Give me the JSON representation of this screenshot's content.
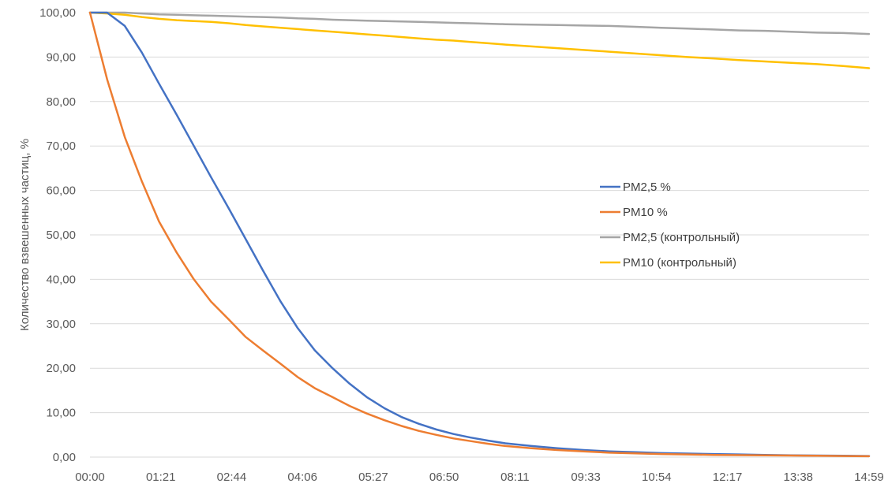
{
  "chart_data": {
    "type": "line",
    "title": "",
    "xlabel": "",
    "ylabel": "Количество взвешенных частиц, %",
    "ylim": [
      0,
      100
    ],
    "y_ticks": [
      "0,00",
      "10,00",
      "20,00",
      "30,00",
      "40,00",
      "50,00",
      "60,00",
      "70,00",
      "80,00",
      "90,00",
      "100,00"
    ],
    "x_ticks": [
      "00:00",
      "01:21",
      "02:44",
      "04:06",
      "05:27",
      "06:50",
      "08:11",
      "09:33",
      "10:54",
      "12:17",
      "13:38",
      "14:59"
    ],
    "x_minutes": [
      0,
      0.33,
      0.67,
      1,
      1.33,
      1.67,
      2,
      2.33,
      2.67,
      3,
      3.33,
      3.67,
      4,
      4.33,
      4.67,
      5,
      5.33,
      5.67,
      6,
      6.33,
      6.67,
      7,
      7.33,
      7.67,
      8,
      8.5,
      9,
      9.5,
      10,
      10.5,
      11,
      11.5,
      12,
      12.5,
      13,
      13.5,
      14,
      14.5,
      15
    ],
    "grid": true,
    "legend_position": "center-right",
    "series": [
      {
        "name": "PM2,5 %",
        "color": "#4472C4",
        "values": [
          100,
          100,
          97,
          91,
          84,
          77,
          70,
          63,
          56,
          49,
          42,
          35,
          29,
          24,
          20,
          16.5,
          13.5,
          11,
          9,
          7.5,
          6.2,
          5.2,
          4.4,
          3.7,
          3.1,
          2.5,
          2.0,
          1.6,
          1.3,
          1.1,
          0.9,
          0.8,
          0.7,
          0.6,
          0.5,
          0.4,
          0.35,
          0.3,
          0.25
        ]
      },
      {
        "name": "PM10 %",
        "color": "#ED7D31",
        "values": [
          100,
          85,
          72,
          62,
          53,
          46,
          40,
          35,
          31,
          27,
          24,
          21,
          18,
          15.5,
          13.5,
          11.5,
          9.8,
          8.3,
          7,
          5.9,
          5.0,
          4.2,
          3.6,
          3.0,
          2.5,
          2.0,
          1.6,
          1.3,
          1.0,
          0.85,
          0.7,
          0.6,
          0.5,
          0.45,
          0.4,
          0.35,
          0.3,
          0.25,
          0.2
        ]
      },
      {
        "name": "PM2,5 (контрольный)",
        "color": "#A5A5A5",
        "values": [
          100,
          100,
          100,
          99.8,
          99.6,
          99.5,
          99.4,
          99.3,
          99.2,
          99.1,
          99.0,
          98.9,
          98.7,
          98.6,
          98.4,
          98.3,
          98.2,
          98.1,
          98.0,
          97.9,
          97.8,
          97.7,
          97.6,
          97.5,
          97.4,
          97.3,
          97.2,
          97.1,
          97.0,
          96.8,
          96.6,
          96.4,
          96.2,
          96.0,
          95.9,
          95.7,
          95.5,
          95.4,
          95.2
        ]
      },
      {
        "name": "PM10 (контрольный)",
        "color": "#FFC000",
        "values": [
          100,
          99.8,
          99.5,
          99.0,
          98.6,
          98.3,
          98.1,
          97.9,
          97.6,
          97.2,
          96.9,
          96.6,
          96.3,
          96.0,
          95.7,
          95.4,
          95.1,
          94.8,
          94.5,
          94.2,
          93.9,
          93.7,
          93.4,
          93.1,
          92.8,
          92.4,
          92.0,
          91.6,
          91.2,
          90.8,
          90.4,
          90.0,
          89.7,
          89.3,
          89.0,
          88.7,
          88.4,
          88.0,
          87.5
        ]
      }
    ]
  }
}
